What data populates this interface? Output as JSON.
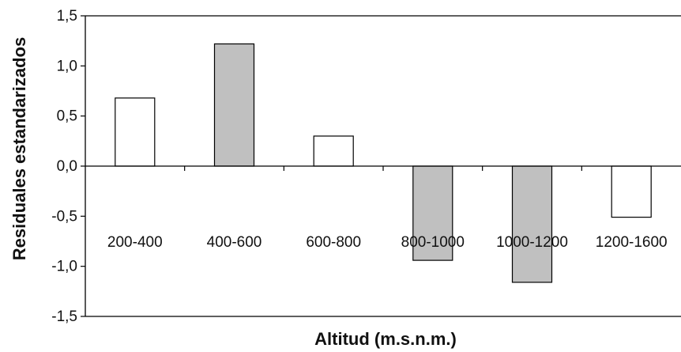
{
  "chart_data": {
    "type": "bar",
    "title": "",
    "xlabel": "Altitud (m.s.n.m.)",
    "ylabel": "Residuales estandarizados",
    "categories": [
      "200-400",
      "400-600",
      "600-800",
      "800-1000",
      "1000-1200",
      "1200-1600"
    ],
    "values": [
      0.68,
      1.22,
      0.3,
      -0.94,
      -1.16,
      -0.51
    ],
    "bar_fill": [
      "#ffffff",
      "#c0c0c0",
      "#ffffff",
      "#c0c0c0",
      "#c0c0c0",
      "#ffffff"
    ],
    "ylim": [
      -1.5,
      1.5
    ],
    "yticks": [
      1.5,
      1.0,
      0.5,
      0.0,
      -0.5,
      -1.0,
      -1.5
    ],
    "ytick_labels": [
      "1,5",
      "1,0",
      "0,5",
      "0,0",
      "-0,5",
      "-1,0",
      "-1,5"
    ],
    "grid": false,
    "legend": "none",
    "colors": {
      "axis": "#000000",
      "bar_stroke": "#000000"
    }
  }
}
